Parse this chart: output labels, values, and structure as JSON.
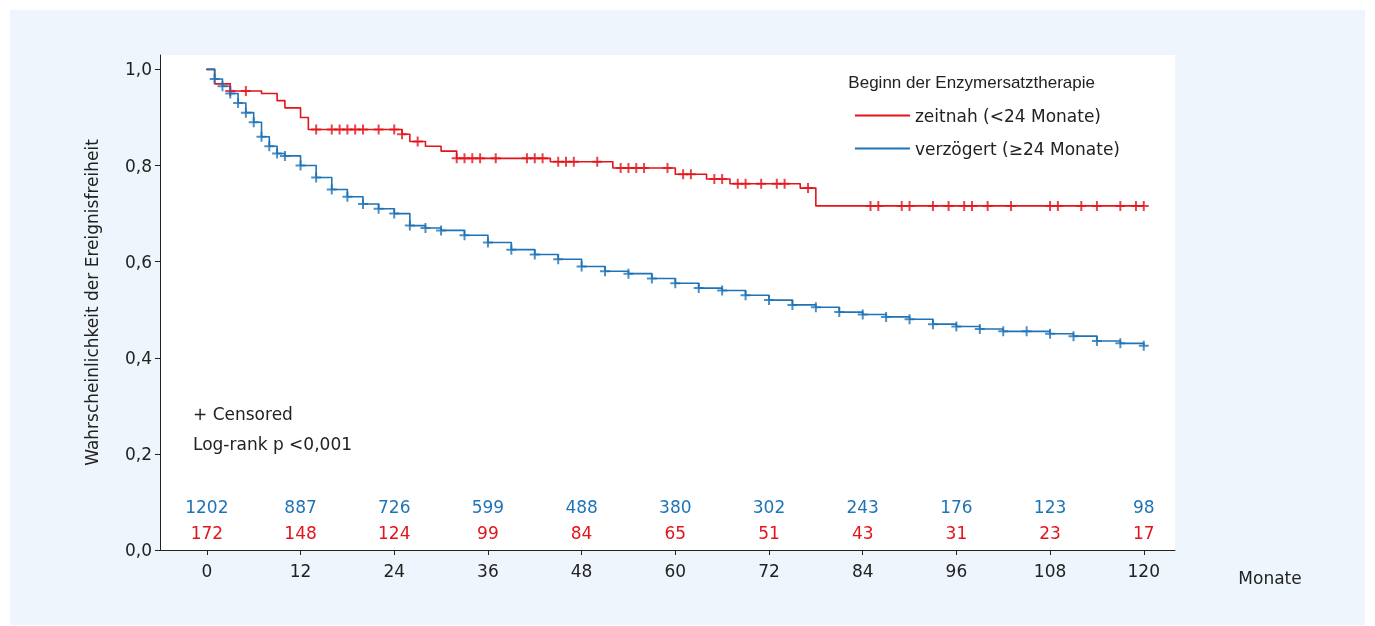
{
  "chart_data": {
    "type": "step",
    "xlabel": "Monate",
    "ylabel": "Wahrscheinlichkeit der Ereignisfreiheit",
    "legend_title": "Beginn der Enzymersatztherapie",
    "legend": "top right",
    "xlim": [
      -6,
      124
    ],
    "xticks": [
      0,
      12,
      24,
      36,
      48,
      60,
      72,
      84,
      96,
      108,
      120
    ],
    "ylim": [
      0,
      1.03
    ],
    "yticks": [
      {
        "value": 0,
        "label": "0,0"
      },
      {
        "value": 0.2,
        "label": "0,2"
      },
      {
        "value": 0.4,
        "label": "0,4"
      },
      {
        "value": 0.6,
        "label": "0,6"
      },
      {
        "value": 0.8,
        "label": "0,8"
      },
      {
        "value": 1,
        "label": "1,0"
      }
    ],
    "series": [
      {
        "name": "zeitnah (<24 Monate)",
        "color": "#e3141b",
        "x": [
          0,
          1,
          3,
          7,
          9,
          10,
          12,
          13,
          25,
          26,
          28,
          30,
          32,
          44,
          52,
          60,
          64,
          67,
          76,
          78,
          120
        ],
        "values": [
          1.0,
          0.97,
          0.955,
          0.95,
          0.935,
          0.92,
          0.9,
          0.875,
          0.865,
          0.85,
          0.84,
          0.83,
          0.815,
          0.808,
          0.795,
          0.782,
          0.772,
          0.762,
          0.753,
          0.716,
          0.716
        ]
      },
      {
        "name": "verzögert (≥24 Monate)",
        "color": "#1f73b7",
        "x": [
          0,
          1,
          2,
          3,
          4,
          5,
          6,
          7,
          8,
          9,
          10,
          12,
          14,
          16,
          18,
          20,
          22,
          24,
          26,
          28,
          30,
          33,
          36,
          39,
          42,
          45,
          48,
          51,
          54,
          57,
          60,
          63,
          66,
          69,
          72,
          75,
          78,
          81,
          84,
          87,
          90,
          93,
          96,
          99,
          102,
          105,
          108,
          111,
          114,
          117,
          120
        ],
        "values": [
          1.0,
          0.98,
          0.965,
          0.95,
          0.93,
          0.91,
          0.89,
          0.86,
          0.84,
          0.825,
          0.82,
          0.8,
          0.775,
          0.75,
          0.735,
          0.72,
          0.71,
          0.7,
          0.675,
          0.67,
          0.665,
          0.655,
          0.64,
          0.625,
          0.615,
          0.605,
          0.59,
          0.58,
          0.575,
          0.565,
          0.555,
          0.545,
          0.54,
          0.53,
          0.52,
          0.51,
          0.505,
          0.495,
          0.49,
          0.485,
          0.48,
          0.47,
          0.465,
          0.46,
          0.455,
          0.455,
          0.45,
          0.445,
          0.435,
          0.43,
          0.425
        ]
      },
      {
        "type": "scatter",
        "marker": "cross",
        "color": "#e3141b",
        "x": [
          3,
          5,
          14,
          16,
          17,
          18,
          19,
          20,
          22,
          24,
          25,
          27,
          32,
          33,
          34,
          35,
          37,
          41,
          42,
          43,
          45,
          46,
          47,
          50,
          53,
          54,
          55,
          56,
          59,
          61,
          62,
          65,
          66,
          68,
          69,
          71,
          73,
          74,
          77,
          85,
          86,
          89,
          90,
          93,
          95,
          97,
          98,
          100,
          103,
          108,
          109,
          112,
          114,
          117,
          119,
          120
        ],
        "values": [
          0.955,
          0.955,
          0.875,
          0.875,
          0.875,
          0.875,
          0.875,
          0.875,
          0.875,
          0.875,
          0.865,
          0.85,
          0.815,
          0.815,
          0.815,
          0.815,
          0.815,
          0.815,
          0.815,
          0.815,
          0.808,
          0.808,
          0.808,
          0.808,
          0.795,
          0.795,
          0.795,
          0.795,
          0.795,
          0.782,
          0.782,
          0.772,
          0.772,
          0.762,
          0.762,
          0.762,
          0.762,
          0.762,
          0.753,
          0.716,
          0.716,
          0.716,
          0.716,
          0.716,
          0.716,
          0.716,
          0.716,
          0.716,
          0.716,
          0.716,
          0.716,
          0.716,
          0.716,
          0.716,
          0.716,
          0.716
        ]
      },
      {
        "type": "scatter",
        "marker": "cross",
        "color": "#1f73b7",
        "x": [
          1,
          2,
          3,
          4,
          5,
          6,
          7,
          8,
          9,
          10,
          12,
          14,
          16,
          18,
          20,
          22,
          24,
          26,
          28,
          30,
          33,
          36,
          39,
          42,
          45,
          48,
          51,
          54,
          57,
          60,
          63,
          66,
          69,
          72,
          75,
          78,
          81,
          84,
          87,
          90,
          93,
          96,
          99,
          102,
          105,
          108,
          111,
          114,
          117,
          120
        ],
        "values": [
          0.98,
          0.965,
          0.95,
          0.93,
          0.91,
          0.89,
          0.86,
          0.84,
          0.825,
          0.82,
          0.8,
          0.775,
          0.75,
          0.735,
          0.72,
          0.71,
          0.7,
          0.675,
          0.67,
          0.665,
          0.655,
          0.64,
          0.625,
          0.615,
          0.605,
          0.59,
          0.58,
          0.575,
          0.565,
          0.555,
          0.545,
          0.54,
          0.53,
          0.52,
          0.51,
          0.505,
          0.495,
          0.49,
          0.485,
          0.48,
          0.47,
          0.465,
          0.46,
          0.455,
          0.455,
          0.45,
          0.445,
          0.435,
          0.43,
          0.425
        ]
      }
    ],
    "annotations": [
      "+ Censored",
      "Log-rank p <0,001",
      "1202",
      "887",
      "726",
      "599",
      "488",
      "380",
      "302",
      "243",
      "176",
      "123",
      "98",
      "172",
      "148",
      "124",
      "99",
      "84",
      "65",
      "51",
      "43",
      "31",
      "23",
      "17"
    ]
  }
}
